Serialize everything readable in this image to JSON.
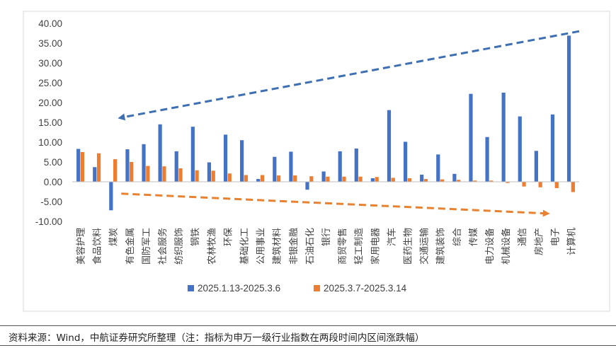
{
  "chart_data": {
    "type": "bar",
    "categories": [
      "美容护理",
      "食品饮料",
      "煤炭",
      "有色金属",
      "国防军工",
      "社会服务",
      "纺织服饰",
      "钢铁",
      "农林牧渔",
      "环保",
      "基础化工",
      "公用事业",
      "建筑材料",
      "非银金融",
      "石油石化",
      "银行",
      "商贸零售",
      "轻工制造",
      "家用电器",
      "汽车",
      "医药生物",
      "交通运输",
      "建筑装饰",
      "综合",
      "传媒",
      "电力设备",
      "机械设备",
      "通信",
      "房地产",
      "电子",
      "计算机"
    ],
    "series": [
      {
        "name": "2025.1.13-2025.3.6",
        "color": "#4472C4",
        "values": [
          8.3,
          3.7,
          -7.2,
          8.2,
          9.5,
          14.5,
          7.7,
          13.9,
          4.9,
          11.9,
          10.5,
          0.7,
          6.3,
          7.6,
          -2.0,
          2.6,
          7.7,
          8.4,
          0.9,
          18.1,
          10.1,
          1.8,
          6.9,
          2.0,
          22.2,
          11.3,
          22.5,
          16.5,
          7.8,
          17.0,
          36.9
        ]
      },
      {
        "name": "2025.3.7-2025.3.14",
        "color": "#ED7D31",
        "values": [
          7.5,
          7.2,
          5.7,
          5.0,
          4.0,
          3.9,
          3.4,
          2.9,
          2.8,
          2.1,
          1.7,
          1.7,
          1.6,
          1.6,
          1.4,
          1.3,
          1.3,
          1.3,
          1.2,
          1.0,
          0.9,
          0.7,
          0.6,
          0.5,
          0.3,
          0.3,
          -0.3,
          -1.2,
          -1.4,
          -1.6,
          -2.6
        ]
      }
    ],
    "y_ticks": [
      "40.00",
      "35.00",
      "30.00",
      "25.00",
      "20.00",
      "15.00",
      "10.00",
      "5.00",
      "0.00",
      "-5.00",
      "-10.00"
    ],
    "ylim": [
      -10,
      40
    ],
    "title": "",
    "xlabel": "",
    "ylabel": "",
    "legend_position": "bottom",
    "grid": false,
    "annotations": [
      {
        "type": "dashed-arrow",
        "color": "#3E6FB3",
        "from": [
          30.5,
          38
        ],
        "to": [
          2.5,
          16.2
        ]
      },
      {
        "type": "dashed-arrow",
        "color": "#E88230",
        "from": [
          2.5,
          -3
        ],
        "to": [
          28.5,
          -8
        ]
      }
    ]
  },
  "source_note": "资料来源：Wind，中航证券研究所整理（注：指标为申万一级行业指数在两段时间内区间涨跌幅）"
}
